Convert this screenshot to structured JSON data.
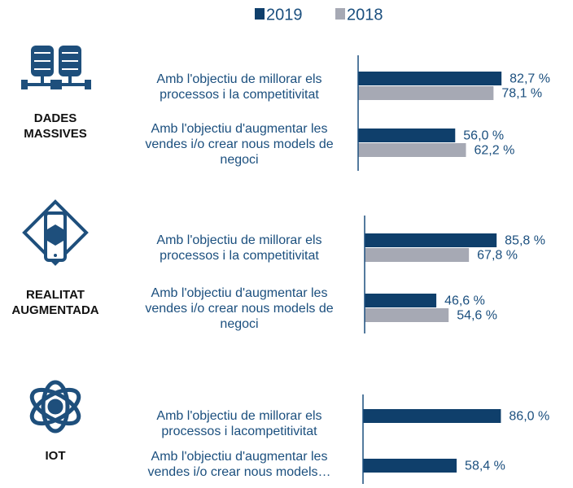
{
  "legend": [
    {
      "name": "2019",
      "color": "#0f3f6b"
    },
    {
      "name": "2018",
      "color": "#a6a9b4"
    }
  ],
  "chart_data": [
    {
      "type": "barh",
      "title": "DADES MASSIVES",
      "categories": [
        "Amb l'objectiu de millorar els processos i la competitivitat",
        "Amb l'objectiu d'augmentar les vendes i/o crear nous models de negoci"
      ],
      "xlim": [
        0,
        100
      ],
      "series": [
        {
          "values": [
            82.7,
            56.0
          ],
          "value_labels": [
            "82,7 %",
            "56,0 %"
          ]
        },
        {
          "values": [
            78.1,
            62.2
          ],
          "value_labels": [
            "78,1 %",
            "62,2 %"
          ]
        }
      ]
    },
    {
      "type": "barh",
      "title": "REALITAT AUGMENTADA",
      "categories": [
        "Amb l'objectiu de millorar els processos i la competitivitat",
        "Amb l'objectiu d'augmentar les vendes i/o crear nous models de negoci"
      ],
      "xlim": [
        0,
        100
      ],
      "series": [
        {
          "values": [
            85.8,
            46.6
          ],
          "value_labels": [
            "85,8 %",
            "46,6 %"
          ]
        },
        {
          "values": [
            67.8,
            54.6
          ],
          "value_labels": [
            "67,8 %",
            "54,6 %"
          ]
        }
      ]
    },
    {
      "type": "barh",
      "title": "IOT",
      "categories": [
        "Amb l'objectiu de millorar els processos i lacompetitivitat",
        "Amb l'objectiu d'augmentar les vendes i/o crear nous models…"
      ],
      "xlim": [
        0,
        100
      ],
      "series": [
        {
          "values": [
            86.0,
            58.4
          ],
          "value_labels": [
            "86,0 %",
            "58,4 %"
          ]
        }
      ]
    }
  ]
}
